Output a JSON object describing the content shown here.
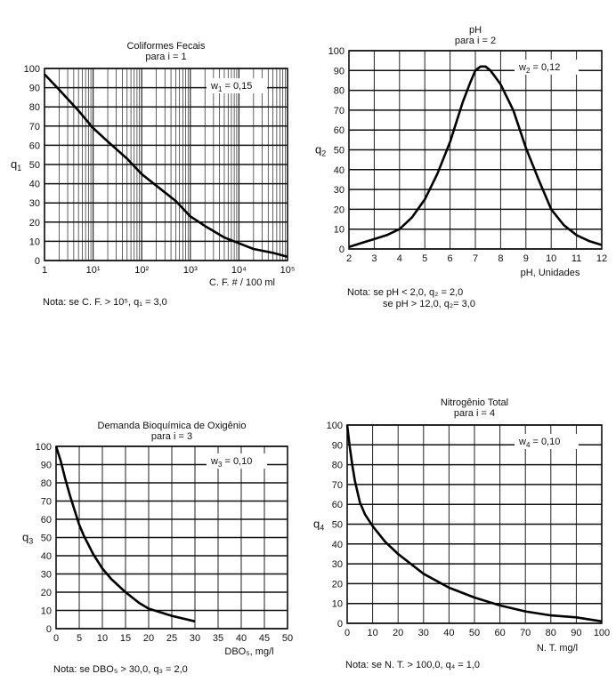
{
  "charts": [
    {
      "title": "Coliformes Fecais",
      "subtitle": "para i = 1",
      "xlabel": "C. F. # / 100 ml",
      "ylabel": "q",
      "ylabel_sub": "1",
      "weight_label": "w",
      "weight_sub": "1",
      "weight_value": "= 0,15",
      "note": "Nota: se C. F. > 10⁵, q₁ = 3,0",
      "xticks": [
        "1",
        "10¹",
        "10²",
        "10³",
        "10⁴",
        "10⁵"
      ],
      "yticks": [
        "0",
        "10",
        "20",
        "30",
        "40",
        "50",
        "60",
        "70",
        "80",
        "90",
        "100"
      ]
    },
    {
      "title": "pH",
      "subtitle": "para i = 2",
      "xlabel": "pH, Unidades",
      "ylabel": "q",
      "ylabel_sub": "2",
      "weight_label": "w",
      "weight_sub": "2",
      "weight_value": "= 0,12",
      "note_line1": "Nota: se pH < 2,0,    q₂ = 2,0",
      "note_line2": "se pH  > 12,0, q₂= 3,0",
      "xticks": [
        "2",
        "3",
        "4",
        "5",
        "6",
        "7",
        "8",
        "9",
        "10",
        "11",
        "12"
      ],
      "yticks": [
        "0",
        "10",
        "20",
        "30",
        "40",
        "50",
        "60",
        "70",
        "80",
        "90",
        "100"
      ]
    },
    {
      "title": "Demanda Bioquímica de Oxigênio",
      "subtitle": "para i = 3",
      "xlabel": "DBO₅, mg/l",
      "ylabel": "q",
      "ylabel_sub": "3",
      "weight_label": "w",
      "weight_sub": "3",
      "weight_value": "= 0,10",
      "note": "Nota: se DBO₅ > 30,0,  q₃ = 2,0",
      "xticks": [
        "0",
        "5",
        "10",
        "15",
        "20",
        "25",
        "30",
        "35",
        "40",
        "45",
        "50"
      ],
      "yticks": [
        "0",
        "10",
        "20",
        "30",
        "40",
        "50",
        "60",
        "70",
        "80",
        "90",
        "100"
      ]
    },
    {
      "title": "Nitrogênio Total",
      "subtitle": "para i = 4",
      "xlabel": "N. T. mg/l",
      "ylabel": "q",
      "ylabel_sub": "4",
      "weight_label": "w",
      "weight_sub": "4",
      "weight_value": "= 0,10",
      "note": "Nota: se N. T. > 100,0,  q₄ = 1,0",
      "xticks": [
        "0",
        "10",
        "20",
        "30",
        "40",
        "50",
        "60",
        "70",
        "80",
        "90",
        "100"
      ],
      "yticks": [
        "0",
        "10",
        "20",
        "30",
        "40",
        "50",
        "60",
        "70",
        "80",
        "90",
        "100"
      ]
    }
  ],
  "chart_data": [
    {
      "type": "line",
      "x_scale": "log",
      "xlim": [
        1,
        100000
      ],
      "ylim": [
        0,
        100
      ],
      "grid": true,
      "x": [
        1,
        2,
        5,
        10,
        20,
        50,
        100,
        200,
        500,
        1000,
        2000,
        5000,
        10000,
        20000,
        50000,
        100000
      ],
      "y": [
        97,
        89,
        78,
        69,
        62,
        53,
        45,
        39,
        31,
        23,
        18,
        12,
        9,
        6,
        4,
        2
      ]
    },
    {
      "type": "line",
      "xlim": [
        2,
        12
      ],
      "ylim": [
        0,
        100
      ],
      "grid": true,
      "x": [
        2,
        2.5,
        3,
        3.5,
        4,
        4.5,
        5,
        5.5,
        6,
        6.5,
        6.8,
        7,
        7.2,
        7.4,
        7.6,
        8,
        8.5,
        9,
        9.5,
        10,
        10.5,
        11,
        11.5,
        12
      ],
      "y": [
        1,
        3,
        5,
        7,
        10,
        16,
        25,
        38,
        54,
        74,
        84,
        90,
        92,
        92,
        90,
        83,
        70,
        51,
        35,
        20,
        12,
        7,
        4,
        2
      ]
    },
    {
      "type": "line",
      "xlim": [
        0,
        50
      ],
      "ylim": [
        0,
        100
      ],
      "grid": true,
      "x": [
        0,
        1,
        2,
        3,
        4,
        5,
        6,
        8,
        10,
        12,
        15,
        18,
        20,
        25,
        30
      ],
      "y": [
        100,
        92,
        82,
        73,
        65,
        57,
        51,
        41,
        33,
        27,
        20,
        14,
        11,
        7,
        4
      ]
    },
    {
      "type": "line",
      "xlim": [
        0,
        100
      ],
      "ylim": [
        0,
        100
      ],
      "grid": true,
      "x": [
        0,
        1,
        2,
        3,
        5,
        7,
        10,
        15,
        20,
        30,
        40,
        50,
        60,
        70,
        80,
        90,
        100
      ],
      "y": [
        100,
        89,
        80,
        72,
        61,
        55,
        49,
        41,
        35,
        25,
        18,
        13,
        9,
        6,
        4,
        3,
        1
      ]
    }
  ]
}
